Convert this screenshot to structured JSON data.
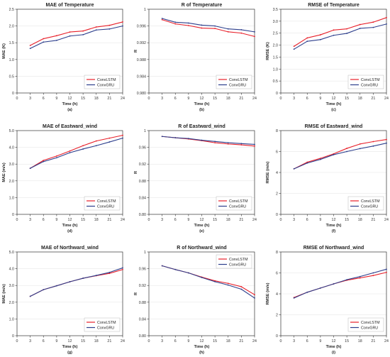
{
  "colors": {
    "convlstm": "#e8202a",
    "convgru": "#2c3e8c"
  },
  "chart_data": [
    {
      "type": "line",
      "title": "MAE of Temperature",
      "xlabel": "Time (h)",
      "ylabel": "MAE (K)",
      "panel": "(a)",
      "xlim": [
        0,
        24
      ],
      "ylim": [
        0,
        2.5
      ],
      "xticks": [
        "0",
        "3",
        "6",
        "9",
        "12",
        "15",
        "18",
        "21",
        "24"
      ],
      "yticks": [
        "0",
        "0.5",
        "1.0",
        "1.5",
        "2.0",
        "2.5"
      ],
      "legend_loc": "lower-right",
      "x": [
        3,
        6,
        9,
        12,
        15,
        18,
        21,
        24
      ],
      "series": [
        {
          "name": "ConvLSTM",
          "values": [
            1.42,
            1.62,
            1.71,
            1.82,
            1.85,
            1.97,
            2.02,
            2.12
          ]
        },
        {
          "name": "ConvGRU",
          "values": [
            1.33,
            1.52,
            1.57,
            1.7,
            1.74,
            1.88,
            1.91,
            2.0
          ]
        }
      ]
    },
    {
      "type": "line",
      "title": "R of Temperature",
      "xlabel": "Time (h)",
      "ylabel": "R",
      "panel": "(b)",
      "xlim": [
        0,
        24
      ],
      "ylim": [
        0.98,
        1.0
      ],
      "xticks": [
        "0",
        "3",
        "6",
        "9",
        "12",
        "15",
        "18",
        "21",
        "24"
      ],
      "yticks": [
        "0.980",
        "0.984",
        "0.988",
        "0.992",
        "0.996",
        "1"
      ],
      "legend_loc": "lower-right",
      "x": [
        3,
        6,
        9,
        12,
        15,
        18,
        21,
        24
      ],
      "series": [
        {
          "name": "ConvLSTM",
          "values": [
            0.9975,
            0.9965,
            0.9961,
            0.9955,
            0.9954,
            0.9946,
            0.9943,
            0.9935
          ]
        },
        {
          "name": "ConvGRU",
          "values": [
            0.9978,
            0.9969,
            0.9967,
            0.9962,
            0.996,
            0.9953,
            0.9951,
            0.9946
          ]
        }
      ]
    },
    {
      "type": "line",
      "title": "RMSE of Temperature",
      "xlabel": "Time (h)",
      "ylabel": "RMSE (K)",
      "panel": "(c)",
      "xlim": [
        0,
        24
      ],
      "ylim": [
        0,
        3.5
      ],
      "xticks": [
        "0",
        "3",
        "6",
        "9",
        "12",
        "15",
        "18",
        "21",
        "24"
      ],
      "yticks": [
        "0",
        "0.5",
        "1.0",
        "1.5",
        "2.0",
        "2.5",
        "3.0",
        "3.5"
      ],
      "legend_loc": "lower-right",
      "x": [
        3,
        6,
        9,
        12,
        15,
        18,
        21,
        24
      ],
      "series": [
        {
          "name": "ConvLSTM",
          "values": [
            1.95,
            2.3,
            2.43,
            2.63,
            2.68,
            2.86,
            2.96,
            3.15
          ]
        },
        {
          "name": "ConvGRU",
          "values": [
            1.83,
            2.16,
            2.23,
            2.41,
            2.49,
            2.7,
            2.74,
            2.88
          ]
        }
      ]
    },
    {
      "type": "line",
      "title": "MAE of Eastward_wind",
      "xlabel": "Time (h)",
      "ylabel": "MAE (m/s)",
      "panel": "(d)",
      "xlim": [
        0,
        24
      ],
      "ylim": [
        0,
        5.0
      ],
      "xticks": [
        "0",
        "3",
        "6",
        "9",
        "12",
        "15",
        "18",
        "21",
        "24"
      ],
      "yticks": [
        "0",
        "1.0",
        "2.0",
        "3.0",
        "4.0",
        "5.0"
      ],
      "legend_loc": "lower-right",
      "x": [
        3,
        6,
        9,
        12,
        15,
        18,
        21,
        24
      ],
      "series": [
        {
          "name": "ConvLSTM",
          "values": [
            2.75,
            3.22,
            3.48,
            3.78,
            4.1,
            4.38,
            4.55,
            4.72
          ]
        },
        {
          "name": "ConvGRU",
          "values": [
            2.75,
            3.15,
            3.38,
            3.68,
            3.9,
            4.1,
            4.32,
            4.55
          ]
        }
      ]
    },
    {
      "type": "line",
      "title": "R of Eastward_wind",
      "xlabel": "Time (h)",
      "ylabel": "R",
      "panel": "(e)",
      "xlim": [
        0,
        24
      ],
      "ylim": [
        0.8,
        1.0
      ],
      "xticks": [
        "0",
        "3",
        "6",
        "9",
        "12",
        "15",
        "18",
        "21",
        "24"
      ],
      "yticks": [
        "0.80",
        "0.84",
        "0.88",
        "0.92",
        "0.96",
        "1"
      ],
      "legend_loc": "lower-right",
      "x": [
        3,
        6,
        9,
        12,
        15,
        18,
        21,
        24
      ],
      "series": [
        {
          "name": "ConvLSTM",
          "values": [
            0.986,
            0.983,
            0.98,
            0.976,
            0.971,
            0.968,
            0.966,
            0.963
          ]
        },
        {
          "name": "ConvGRU",
          "values": [
            0.986,
            0.983,
            0.981,
            0.977,
            0.974,
            0.971,
            0.969,
            0.967
          ]
        }
      ]
    },
    {
      "type": "line",
      "title": "RMSE of Eastward_wind",
      "xlabel": "Time (h)",
      "ylabel": "RMSE (m/s)",
      "panel": "(f)",
      "xlim": [
        0,
        24
      ],
      "ylim": [
        0,
        8
      ],
      "xticks": [
        "0",
        "3",
        "6",
        "9",
        "12",
        "15",
        "18",
        "21",
        "24"
      ],
      "yticks": [
        "0",
        "2",
        "4",
        "6",
        "8"
      ],
      "legend_loc": "lower-right",
      "x": [
        3,
        6,
        9,
        12,
        15,
        18,
        21,
        24
      ],
      "series": [
        {
          "name": "ConvLSTM",
          "values": [
            4.35,
            4.98,
            5.35,
            5.78,
            6.3,
            6.72,
            6.95,
            7.15
          ]
        },
        {
          "name": "ConvGRU",
          "values": [
            4.35,
            4.9,
            5.25,
            5.7,
            6.0,
            6.28,
            6.52,
            6.8
          ]
        }
      ]
    },
    {
      "type": "line",
      "title": "MAE of Northward_wind",
      "xlabel": "Time (h)",
      "ylabel": "MAE (m/s)",
      "panel": "(g)",
      "xlim": [
        0,
        24
      ],
      "ylim": [
        0,
        5.0
      ],
      "xticks": [
        "0",
        "3",
        "6",
        "9",
        "12",
        "15",
        "18",
        "21",
        "24"
      ],
      "yticks": [
        "0",
        "1.0",
        "2.0",
        "3.0",
        "4.0",
        "5.0"
      ],
      "legend_loc": "lower-right",
      "x": [
        3,
        6,
        9,
        12,
        15,
        18,
        21,
        24
      ],
      "series": [
        {
          "name": "ConvLSTM",
          "values": [
            2.35,
            2.75,
            2.98,
            3.22,
            3.43,
            3.58,
            3.72,
            3.95
          ]
        },
        {
          "name": "ConvGRU",
          "values": [
            2.35,
            2.75,
            2.98,
            3.22,
            3.43,
            3.6,
            3.78,
            4.05
          ]
        }
      ]
    },
    {
      "type": "line",
      "title": "R of Northward_wind",
      "xlabel": "Time (h)",
      "ylabel": "R",
      "panel": "(h)",
      "xlim": [
        0,
        24
      ],
      "ylim": [
        0.8,
        1.0
      ],
      "xticks": [
        "0",
        "3",
        "6",
        "9",
        "12",
        "15",
        "18",
        "21",
        "24"
      ],
      "yticks": [
        "0.80",
        "0.84",
        "0.88",
        "0.92",
        "0.96",
        "1"
      ],
      "legend_loc": "upper-right",
      "x": [
        3,
        6,
        9,
        12,
        15,
        18,
        21,
        24
      ],
      "series": [
        {
          "name": "ConvLSTM",
          "values": [
            0.967,
            0.958,
            0.95,
            0.94,
            0.931,
            0.925,
            0.917,
            0.898
          ]
        },
        {
          "name": "ConvGRU",
          "values": [
            0.967,
            0.958,
            0.95,
            0.939,
            0.929,
            0.921,
            0.911,
            0.89
          ]
        }
      ]
    },
    {
      "type": "line",
      "title": "RMSE of Northward_wind",
      "xlabel": "Time (h)",
      "ylabel": "RMSE (m/s)",
      "panel": "(i)",
      "xlim": [
        0,
        24
      ],
      "ylim": [
        0,
        8
      ],
      "xticks": [
        "0",
        "3",
        "6",
        "9",
        "12",
        "15",
        "18",
        "21",
        "24"
      ],
      "yticks": [
        "0",
        "2",
        "4",
        "6",
        "8"
      ],
      "legend_loc": "lower-right",
      "x": [
        3,
        6,
        9,
        12,
        15,
        18,
        21,
        24
      ],
      "series": [
        {
          "name": "ConvLSTM",
          "values": [
            3.65,
            4.15,
            4.55,
            4.95,
            5.3,
            5.52,
            5.75,
            6.05
          ]
        },
        {
          "name": "ConvGRU",
          "values": [
            3.6,
            4.15,
            4.55,
            4.95,
            5.35,
            5.65,
            6.0,
            6.35
          ]
        }
      ]
    }
  ]
}
